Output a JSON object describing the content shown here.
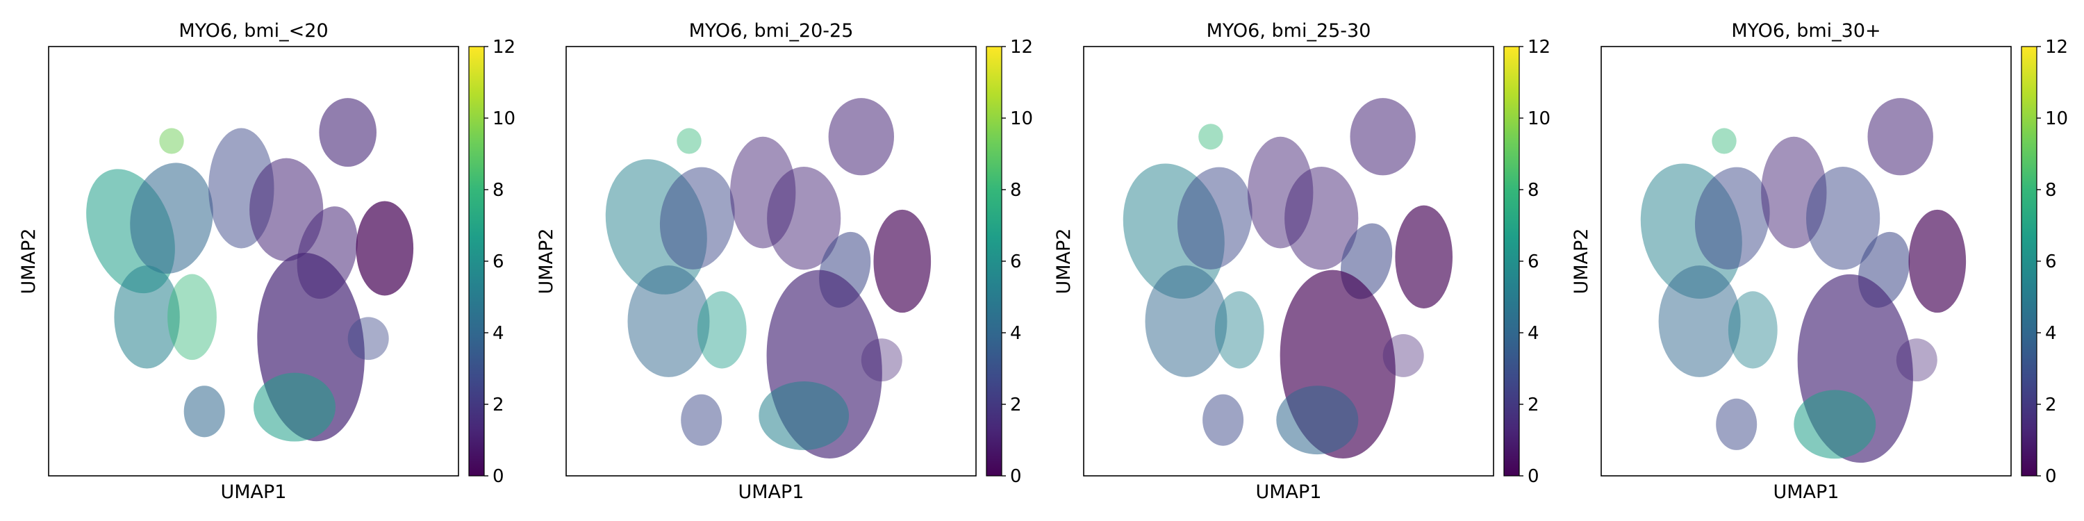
{
  "figure": {
    "panels": [
      {
        "title": "MYO6, bmi_<20",
        "xlabel": "UMAP1",
        "ylabel": "UMAP2"
      },
      {
        "title": "MYO6, bmi_20-25",
        "xlabel": "UMAP1",
        "ylabel": "UMAP2"
      },
      {
        "title": "MYO6, bmi_25-30",
        "xlabel": "UMAP1",
        "ylabel": "UMAP2"
      },
      {
        "title": "MYO6, bmi_30+",
        "xlabel": "UMAP1",
        "ylabel": "UMAP2"
      }
    ]
  },
  "chart_data": [
    {
      "type": "scatter",
      "title": "MYO6, bmi_<20",
      "xlabel": "UMAP1",
      "ylabel": "UMAP2",
      "x_ticks": [],
      "y_ticks": [],
      "colorbar": {
        "ticks": [
          0,
          2,
          4,
          6,
          8,
          10,
          12
        ],
        "range": [
          0,
          12
        ],
        "colormap": "viridis"
      },
      "legend": "none",
      "grid": false
    },
    {
      "type": "scatter",
      "title": "MYO6, bmi_20-25",
      "xlabel": "UMAP1",
      "ylabel": "UMAP2",
      "x_ticks": [],
      "y_ticks": [],
      "colorbar": {
        "ticks": [
          0,
          2,
          4,
          6,
          8,
          10,
          12
        ],
        "range": [
          0,
          12
        ],
        "colormap": "viridis"
      },
      "legend": "none",
      "grid": false
    },
    {
      "type": "scatter",
      "title": "MYO6, bmi_25-30",
      "xlabel": "UMAP1",
      "ylabel": "UMAP2",
      "x_ticks": [],
      "y_ticks": [],
      "colorbar": {
        "ticks": [
          0,
          2,
          4,
          6,
          8,
          10,
          12
        ],
        "range": [
          0,
          12
        ],
        "colormap": "viridis"
      },
      "legend": "none",
      "grid": false
    },
    {
      "type": "scatter",
      "title": "MYO6, bmi_30+",
      "xlabel": "UMAP1",
      "ylabel": "UMAP2",
      "x_ticks": [],
      "y_ticks": [],
      "colorbar": {
        "ticks": [
          0,
          2,
          4,
          6,
          8,
          10,
          12
        ],
        "range": [
          0,
          12
        ],
        "colormap": "viridis"
      },
      "legend": "none",
      "grid": false
    }
  ],
  "colors": {
    "viridis": [
      "#440154",
      "#482878",
      "#3e4989",
      "#31688e",
      "#26828e",
      "#1f9e89",
      "#35b779",
      "#6ece58",
      "#b5de2b",
      "#fde725"
    ],
    "axes": "#000000"
  }
}
